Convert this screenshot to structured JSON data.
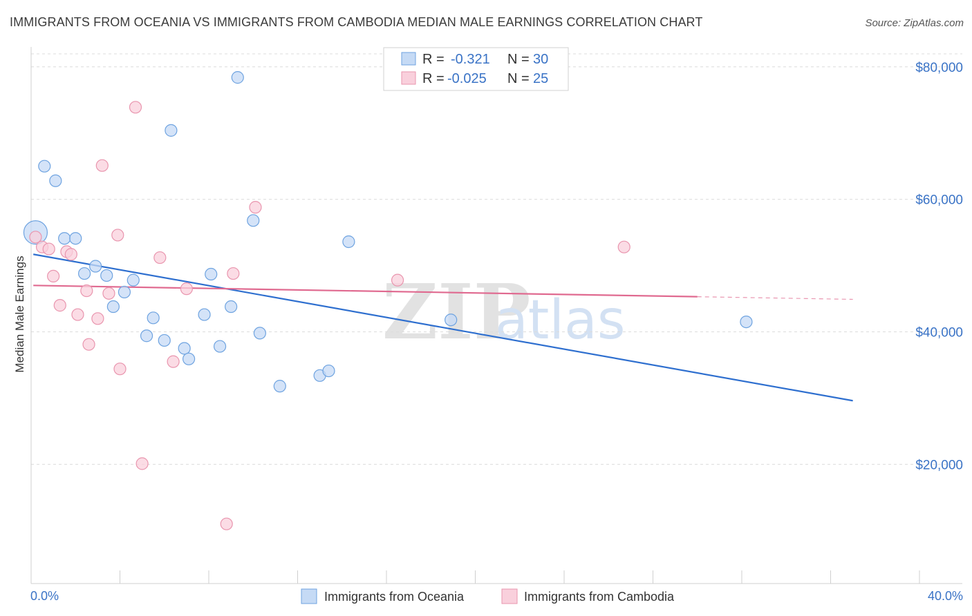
{
  "header": {
    "title": "IMMIGRANTS FROM OCEANIA VS IMMIGRANTS FROM CAMBODIA MEDIAN MALE EARNINGS CORRELATION CHART",
    "source": "Source: ZipAtlas.com"
  },
  "watermark": {
    "zip": "ZIP",
    "atlas": "atlas"
  },
  "legend": {
    "rows": [
      {
        "r_label": "R =",
        "r_value": "-0.321",
        "n_label": "N =",
        "n_value": "30"
      },
      {
        "r_label": "R =",
        "r_value": "-0.025",
        "n_label": "N =",
        "n_value": "25"
      }
    ]
  },
  "chart_data": {
    "type": "scatter",
    "title": "IMMIGRANTS FROM OCEANIA VS IMMIGRANTS FROM CAMBODIA MEDIAN MALE EARNINGS CORRELATION CHART",
    "xlabel": "",
    "ylabel": "Median Male Earnings",
    "xlim": [
      0,
      40
    ],
    "ylim": [
      2000,
      83000
    ],
    "x_tick_labels": [
      "0.0%",
      "40.0%"
    ],
    "y_ticks": [
      20000,
      40000,
      60000,
      80000
    ],
    "y_tick_labels": [
      "$20,000",
      "$40,000",
      "$60,000",
      "$80,000"
    ],
    "grid": true,
    "legend_position": "bottom",
    "series": [
      {
        "name": "Immigrants from Oceania",
        "color": "#6ea3e0",
        "fill": "#c5daf5",
        "line_color": "#2e6fcf",
        "r": -0.321,
        "n": 30,
        "trend": {
          "x": [
            0.1,
            37.0
          ],
          "y": [
            51700,
            29600
          ],
          "solid_to": 37.0
        },
        "points": [
          {
            "x": 0.2,
            "y": 55000,
            "big": true
          },
          {
            "x": 0.6,
            "y": 65000
          },
          {
            "x": 1.1,
            "y": 62800
          },
          {
            "x": 1.5,
            "y": 54100
          },
          {
            "x": 2.0,
            "y": 54100
          },
          {
            "x": 2.4,
            "y": 48800
          },
          {
            "x": 2.9,
            "y": 49900
          },
          {
            "x": 3.4,
            "y": 48500
          },
          {
            "x": 3.7,
            "y": 43800
          },
          {
            "x": 4.2,
            "y": 46000
          },
          {
            "x": 4.6,
            "y": 47800
          },
          {
            "x": 5.2,
            "y": 39400
          },
          {
            "x": 5.5,
            "y": 42100
          },
          {
            "x": 6.0,
            "y": 38700
          },
          {
            "x": 6.3,
            "y": 70400
          },
          {
            "x": 6.9,
            "y": 37500
          },
          {
            "x": 7.1,
            "y": 35900
          },
          {
            "x": 7.8,
            "y": 42600
          },
          {
            "x": 8.1,
            "y": 48700
          },
          {
            "x": 8.5,
            "y": 37800
          },
          {
            "x": 9.0,
            "y": 43800
          },
          {
            "x": 9.3,
            "y": 78400
          },
          {
            "x": 10.0,
            "y": 56800
          },
          {
            "x": 10.3,
            "y": 39800
          },
          {
            "x": 11.2,
            "y": 31800
          },
          {
            "x": 13.0,
            "y": 33400
          },
          {
            "x": 13.4,
            "y": 34100
          },
          {
            "x": 14.3,
            "y": 53600
          },
          {
            "x": 18.9,
            "y": 41800
          },
          {
            "x": 32.2,
            "y": 41500
          }
        ]
      },
      {
        "name": "Immigrants from Cambodia",
        "color": "#e995ae",
        "fill": "#f9d0dc",
        "line_color": "#e06a90",
        "r": -0.025,
        "n": 25,
        "trend": {
          "x": [
            0.1,
            37.0
          ],
          "y": [
            47000,
            44900
          ],
          "solid_to": 30.0
        },
        "points": [
          {
            "x": 0.2,
            "y": 54300
          },
          {
            "x": 0.5,
            "y": 52800
          },
          {
            "x": 0.8,
            "y": 52500
          },
          {
            "x": 1.0,
            "y": 48400
          },
          {
            "x": 1.3,
            "y": 44000
          },
          {
            "x": 1.6,
            "y": 52100
          },
          {
            "x": 1.8,
            "y": 51700
          },
          {
            "x": 2.1,
            "y": 42600
          },
          {
            "x": 2.5,
            "y": 46200
          },
          {
            "x": 2.6,
            "y": 38100
          },
          {
            "x": 3.0,
            "y": 42000
          },
          {
            "x": 3.2,
            "y": 65100
          },
          {
            "x": 3.5,
            "y": 45800
          },
          {
            "x": 3.9,
            "y": 54600
          },
          {
            "x": 4.0,
            "y": 34400
          },
          {
            "x": 4.7,
            "y": 73900
          },
          {
            "x": 5.0,
            "y": 20100
          },
          {
            "x": 5.8,
            "y": 51200
          },
          {
            "x": 6.4,
            "y": 35500
          },
          {
            "x": 7.0,
            "y": 46500
          },
          {
            "x": 8.8,
            "y": 11000
          },
          {
            "x": 9.1,
            "y": 48800
          },
          {
            "x": 10.1,
            "y": 58800
          },
          {
            "x": 16.5,
            "y": 47800
          },
          {
            "x": 26.7,
            "y": 52800
          }
        ]
      }
    ]
  }
}
